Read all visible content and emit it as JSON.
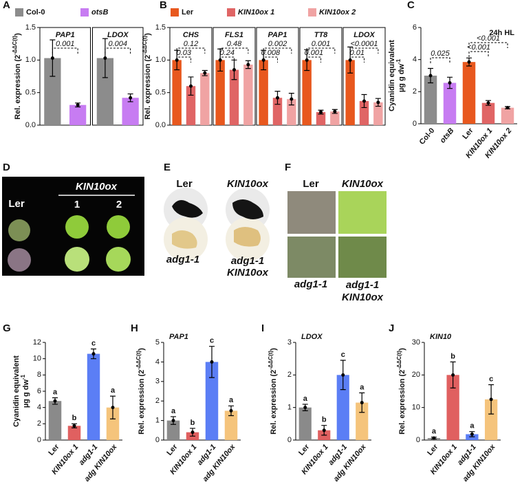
{
  "chart_data": [
    {
      "type": "bar",
      "panel": "A",
      "ylabel": "Rel. expression (2",
      "ylabel_sup": "-ΔΔC(t)",
      "ylabel_end": ")",
      "categories": [
        "Col-0",
        "otsB"
      ],
      "colors": [
        "#8c8c8c",
        "#c77cf2"
      ],
      "italic": [
        false,
        true
      ],
      "ylim": [
        0,
        1.5
      ],
      "yticks": [
        {
          "value": 0,
          "label": "0.0"
        },
        0.5,
        {
          "value": 1,
          "label": "1.0"
        },
        1.5
      ],
      "panels": [
        {
          "title": "PAP1",
          "values": [
            1.03,
            0.31
          ],
          "errors": [
            0.28,
            0.03
          ],
          "pvalues": [
            "0.001"
          ]
        },
        {
          "title": "LDOX",
          "values": [
            1.03,
            0.42
          ],
          "errors": [
            0.3,
            0.06
          ],
          "pvalues": [
            "0.004"
          ]
        }
      ]
    },
    {
      "type": "bar",
      "panel": "B",
      "ylabel": "Rel. expression (2",
      "ylabel_sup": "-ΔΔC(t)",
      "ylabel_end": ")",
      "categories": [
        "Ler",
        "KIN10ox 1",
        "KIN10ox 2"
      ],
      "colors": [
        "#e8581e",
        "#e06565",
        "#f0a3a3"
      ],
      "italic": [
        false,
        true,
        true
      ],
      "ylim": [
        0,
        1.5
      ],
      "yticks": [
        {
          "value": 0,
          "label": "0.0"
        },
        0.5,
        {
          "value": 1,
          "label": "1.0"
        },
        1.5
      ],
      "panels": [
        {
          "title": "CHS",
          "values": [
            1.0,
            0.6,
            0.8
          ],
          "errors": [
            0.15,
            0.14,
            0.04
          ],
          "pvalues": [
            "0.12",
            "0.03"
          ]
        },
        {
          "title": "FLS1",
          "values": [
            1.0,
            0.85,
            0.93
          ],
          "errors": [
            0.17,
            0.15,
            0.06
          ],
          "pvalues": [
            "0.48",
            "0.24"
          ]
        },
        {
          "title": "PAP1",
          "values": [
            1.0,
            0.42,
            0.4
          ],
          "errors": [
            0.15,
            0.1,
            0.09
          ],
          "pvalues": [
            "0.002",
            "0.008"
          ]
        },
        {
          "title": "TT8",
          "values": [
            1.0,
            0.2,
            0.21
          ],
          "errors": [
            0.16,
            0.03,
            0.03
          ],
          "pvalues": [
            "0.001",
            "0.001"
          ]
        },
        {
          "title": "LDOX",
          "values": [
            1.0,
            0.37,
            0.35
          ],
          "errors": [
            0.2,
            0.1,
            0.06
          ],
          "pvalues": [
            "<0.0001",
            "0.01"
          ]
        }
      ]
    },
    {
      "type": "bar",
      "panel": "C",
      "ylabel": "Cyanidin equivalent",
      "ylabel_unit": "µg g dw",
      "ylabel_unit_sup": "-1",
      "annotation": "24h HL",
      "categories": [
        "Col-0",
        "otsB",
        "Ler",
        "KIN10ox 1",
        "KIN10ox 2"
      ],
      "colors": [
        "#8c8c8c",
        "#c77cf2",
        "#e8581e",
        "#e06565",
        "#f0a3a3"
      ],
      "italic": [
        false,
        true,
        false,
        true,
        true
      ],
      "values": [
        3.0,
        2.55,
        3.85,
        1.3,
        1.0
      ],
      "errors": [
        0.45,
        0.35,
        0.25,
        0.15,
        0.07
      ],
      "pvalues": [
        "0.025",
        "<0.001",
        "<0.001"
      ],
      "ylim": [
        0,
        6
      ],
      "yticks": [
        0,
        2,
        4,
        6
      ]
    },
    {
      "type": "bar",
      "panel": "G",
      "ylabel": "Cyanidin equivalent",
      "ylabel_unit": "µg g dw",
      "ylabel_unit_sup": "-1",
      "categories": [
        "Ler",
        "KIN10ox 1",
        "adg1-1",
        "adg KIN10ox"
      ],
      "colors": [
        "#8a8a8a",
        "#e06060",
        "#5b7ef5",
        "#f5c47c"
      ],
      "italic": [
        false,
        true,
        true,
        true
      ],
      "values": [
        4.8,
        1.75,
        10.6,
        4.0
      ],
      "errors": [
        0.4,
        0.25,
        0.6,
        1.4
      ],
      "letters": [
        "a",
        "b",
        "c",
        "a"
      ],
      "ylim": [
        0,
        12
      ],
      "yticks": [
        0,
        2,
        4,
        6,
        8,
        10,
        12
      ]
    },
    {
      "type": "bar",
      "panel": "H",
      "title": "PAP1",
      "ylabel": "Rel. expression (2",
      "ylabel_sup": "-ΔΔC(t)",
      "ylabel_end": ")",
      "categories": [
        "Ler",
        "KIN10ox 1",
        "adg1-1",
        "adg KIN10ox"
      ],
      "colors": [
        "#8a8a8a",
        "#e06060",
        "#5b7ef5",
        "#f5c47c"
      ],
      "italic": [
        false,
        true,
        true,
        true
      ],
      "values": [
        1.0,
        0.4,
        4.0,
        1.5
      ],
      "errors": [
        0.2,
        0.2,
        0.8,
        0.25
      ],
      "letters": [
        "a",
        "b",
        "c",
        "a"
      ],
      "ylim": [
        0,
        5
      ],
      "yticks": [
        0,
        1,
        2,
        3,
        4,
        5
      ]
    },
    {
      "type": "bar",
      "panel": "I",
      "title": "LDOX",
      "ylabel": "Rel. expression (2",
      "ylabel_sup": "-ΔΔC(t)",
      "ylabel_end": ")",
      "categories": [
        "Ler",
        "KIN10ox 1",
        "adg1-1",
        "adg KIN10ox"
      ],
      "colors": [
        "#8a8a8a",
        "#e06060",
        "#5b7ef5",
        "#f5c47c"
      ],
      "italic": [
        false,
        true,
        true,
        true
      ],
      "values": [
        1.0,
        0.3,
        2.0,
        1.15
      ],
      "errors": [
        0.1,
        0.15,
        0.45,
        0.3
      ],
      "letters": [
        "a",
        "b",
        "c",
        "a"
      ],
      "ylim": [
        0,
        3
      ],
      "yticks": [
        0,
        1,
        2,
        3
      ]
    },
    {
      "type": "bar",
      "panel": "J",
      "title": "KIN10",
      "ylabel": "Rel. expression (2",
      "ylabel_sup": "-ΔΔC(t)",
      "ylabel_end": ")",
      "categories": [
        "Ler",
        "KIN10ox 1",
        "adg1-1",
        "adg KIN10ox"
      ],
      "colors": [
        "#8a8a8a",
        "#e06060",
        "#5b7ef5",
        "#f5c47c"
      ],
      "italic": [
        false,
        true,
        true,
        true
      ],
      "values": [
        0.6,
        20,
        1.8,
        12.5
      ],
      "errors": [
        0.3,
        4,
        0.8,
        4.5
      ],
      "letters": [
        "a",
        "b",
        "a",
        "c"
      ],
      "ylim": [
        0,
        30
      ],
      "yticks": [
        0,
        10,
        20,
        30
      ]
    }
  ],
  "photo_panels": [
    {
      "panel": "D",
      "labels": [
        "Ler",
        "KIN10ox",
        "1",
        "2"
      ]
    },
    {
      "panel": "E",
      "labels": [
        "Ler",
        "KIN10ox",
        "adg1-1",
        "adg1-1",
        "KIN10ox"
      ]
    },
    {
      "panel": "F",
      "labels": [
        "Ler",
        "KIN10ox",
        "adg1-1",
        "adg1-1",
        "KIN10ox"
      ]
    }
  ]
}
